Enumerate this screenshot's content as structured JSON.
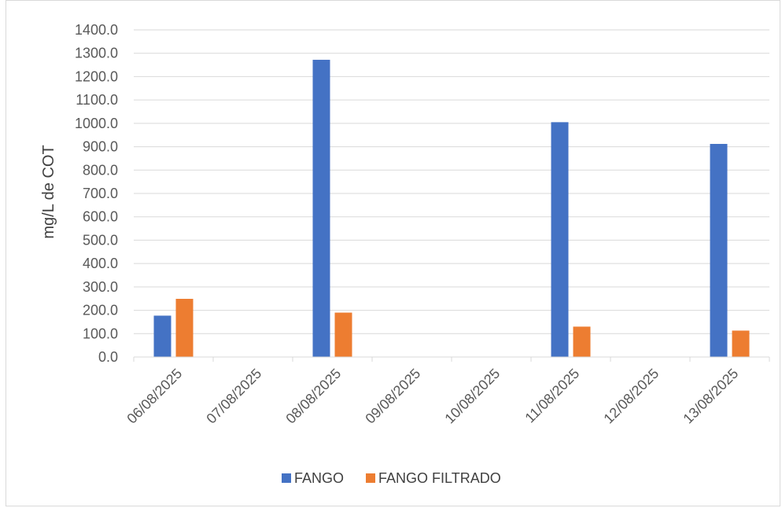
{
  "chart_data": {
    "type": "bar",
    "title": "",
    "xlabel": "",
    "ylabel": "mg/L de COT",
    "categories": [
      "06/08/2025",
      "07/08/2025",
      "08/08/2025",
      "09/08/2025",
      "10/08/2025",
      "11/08/2025",
      "12/08/2025",
      "13/08/2025"
    ],
    "series": [
      {
        "name": "FANGO",
        "color": "#4472C4",
        "values": [
          177,
          null,
          1272,
          null,
          null,
          1005,
          null,
          912
        ]
      },
      {
        "name": "FANGO FILTRADO",
        "color": "#ED7D31",
        "values": [
          249,
          null,
          190,
          null,
          null,
          130,
          null,
          113
        ]
      }
    ],
    "ylim": [
      0,
      1400
    ],
    "ytick_step": 100,
    "ytick_decimals": 1,
    "grid": true,
    "legend_position": "bottom"
  }
}
